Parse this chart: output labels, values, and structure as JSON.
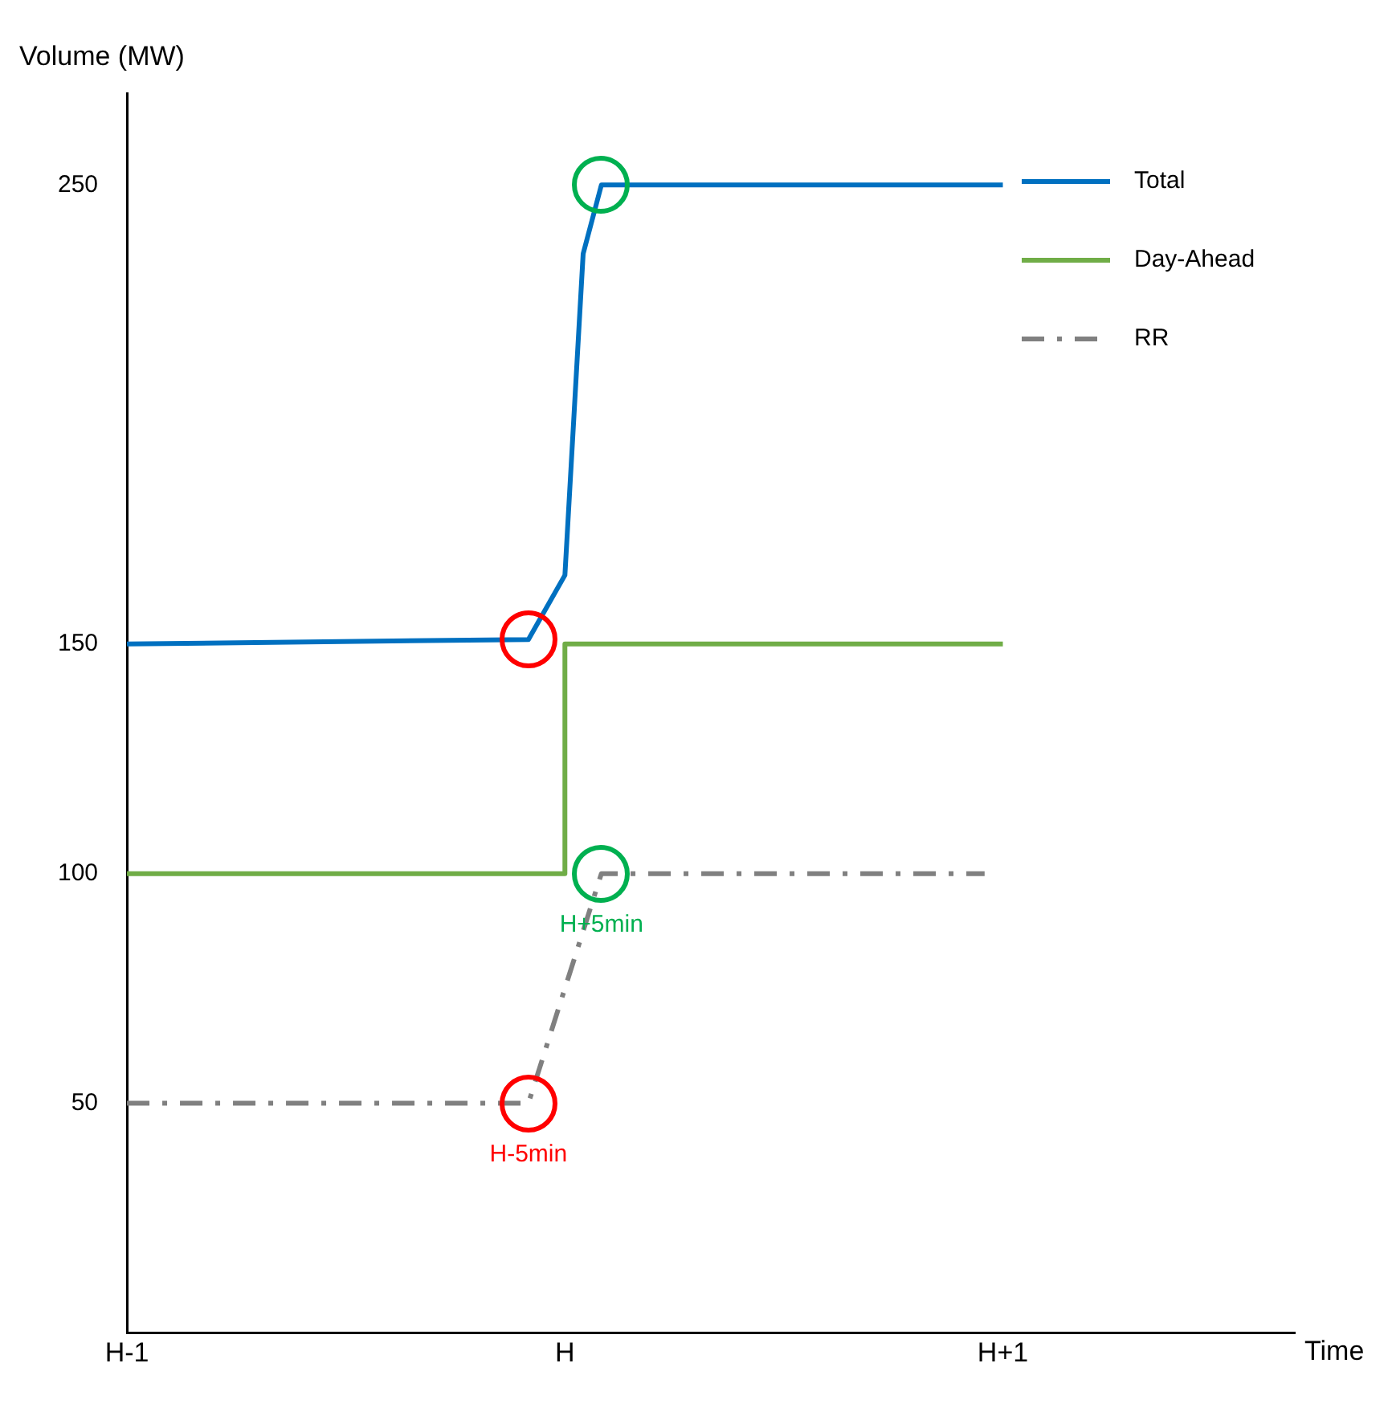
{
  "chart_data": {
    "type": "line",
    "xlabel": "Time",
    "ylabel": "Volume (MW)",
    "categories": [
      "H-1",
      null,
      null,
      null,
      null,
      null,
      null,
      null,
      null,
      null,
      null,
      null,
      null,
      null,
      null,
      null,
      null,
      null,
      null,
      null,
      null,
      null,
      null,
      null,
      "H",
      null,
      null,
      null,
      null,
      null,
      null,
      null,
      null,
      null,
      null,
      null,
      null,
      null,
      null,
      null,
      null,
      null,
      null,
      null,
      null,
      null,
      null,
      null,
      "H+1",
      null,
      null,
      null,
      null,
      null,
      null,
      null,
      null,
      null,
      null,
      null,
      null,
      null,
      null,
      null,
      null
    ],
    "ylim": [
      0,
      270
    ],
    "yticks": [
      50,
      100,
      150,
      250
    ],
    "series": [
      {
        "name": "Total",
        "color": "#0070c0",
        "line_style": "solid",
        "values": [
          150,
          null,
          null,
          null,
          null,
          null,
          null,
          null,
          null,
          null,
          null,
          null,
          null,
          null,
          null,
          null,
          null,
          null,
          null,
          null,
          null,
          null,
          151,
          null,
          165,
          235,
          250,
          null,
          null,
          null,
          null,
          null,
          null,
          null,
          null,
          null,
          null,
          null,
          null,
          null,
          null,
          null,
          null,
          null,
          null,
          null,
          null,
          null,
          250,
          null,
          null,
          null,
          null,
          null,
          null,
          null,
          null,
          null,
          null,
          null,
          null,
          null,
          null,
          null,
          null
        ]
      },
      {
        "name": "Day-Ahead",
        "color": "#70ad47",
        "type": "step",
        "line_style": "solid",
        "values": [
          100,
          null,
          null,
          null,
          null,
          null,
          null,
          null,
          null,
          null,
          null,
          null,
          null,
          null,
          null,
          null,
          null,
          null,
          null,
          null,
          null,
          null,
          null,
          null,
          150,
          null,
          null,
          null,
          null,
          null,
          null,
          null,
          null,
          null,
          null,
          null,
          null,
          null,
          null,
          null,
          null,
          null,
          null,
          null,
          null,
          null,
          null,
          null,
          150,
          null,
          null,
          null,
          null,
          null,
          null,
          null,
          null,
          null,
          null,
          null,
          null,
          null,
          null,
          null,
          null
        ]
      },
      {
        "name": "RR",
        "color": "#808080",
        "line_style": "dashed",
        "values": [
          50,
          null,
          null,
          null,
          null,
          null,
          null,
          null,
          null,
          null,
          null,
          null,
          null,
          null,
          null,
          null,
          null,
          null,
          null,
          null,
          null,
          null,
          50,
          null,
          null,
          null,
          100,
          null,
          null,
          null,
          null,
          null,
          null,
          null,
          null,
          null,
          null,
          null,
          null,
          null,
          null,
          null,
          null,
          null,
          null,
          null,
          null,
          100,
          null,
          null,
          null,
          null,
          null,
          null,
          null,
          null,
          null,
          null,
          null,
          null,
          null,
          null,
          null,
          null,
          null
        ]
      }
    ],
    "annotations": [
      "H-5min",
      "H+5min"
    ],
    "grid": false,
    "legend": "top right"
  }
}
